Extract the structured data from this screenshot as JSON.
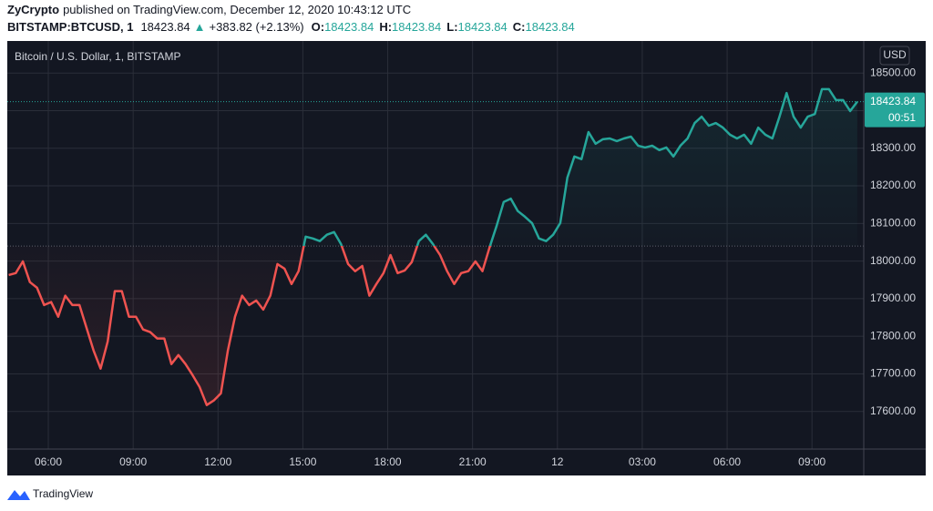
{
  "header": {
    "author": "ZyCrypto",
    "published": "published on TradingView.com, December 12, 2020 10:43:12 UTC",
    "symbol": "BITSTAMP:BTCUSD, 1",
    "last": "18423.84",
    "arrow": "▲",
    "change": "+383.82 (+2.13%)",
    "ohlc": [
      {
        "label": "O:",
        "value": "18423.84"
      },
      {
        "label": "H:",
        "value": "18423.84"
      },
      {
        "label": "L:",
        "value": "18423.84"
      },
      {
        "label": "C:",
        "value": "18423.84"
      }
    ]
  },
  "chart_data": {
    "type": "baseline",
    "title": "Bitcoin / U.S. Dollar, 1, BITSTAMP",
    "unit": "USD",
    "countdown": "00:51",
    "baseline": 18040,
    "up_color": "#26a69a",
    "down_color": "#ef5350",
    "grid": true,
    "xlim": [
      4.55,
      34.83
    ],
    "ylim": [
      17500,
      18578
    ],
    "xticks": [
      {
        "value": 6,
        "label": "06:00"
      },
      {
        "value": 9,
        "label": "09:00"
      },
      {
        "value": 12,
        "label": "12:00"
      },
      {
        "value": 15,
        "label": "15:00"
      },
      {
        "value": 18,
        "label": "18:00"
      },
      {
        "value": 21,
        "label": "21:00"
      },
      {
        "value": 24,
        "label": "12"
      },
      {
        "value": 27,
        "label": "03:00"
      },
      {
        "value": 30,
        "label": "06:00"
      },
      {
        "value": 33,
        "label": "09:00"
      }
    ],
    "yticks": [
      {
        "value": 17600,
        "label": "17600.00"
      },
      {
        "value": 17700,
        "label": "17700.00"
      },
      {
        "value": 17800,
        "label": "17800.00"
      },
      {
        "value": 17900,
        "label": "17900.00"
      },
      {
        "value": 18000,
        "label": "18000.00"
      },
      {
        "value": 18100,
        "label": "18100.00"
      },
      {
        "value": 18200,
        "label": "18200.00"
      },
      {
        "value": 18300,
        "label": "18300.00"
      },
      {
        "value": 18400,
        "label": "18400.00"
      },
      {
        "value": 18500,
        "label": "18500.00"
      }
    ],
    "x": [
      4.6,
      4.85,
      5.1,
      5.35,
      5.6,
      5.85,
      6.1,
      6.35,
      6.6,
      6.85,
      7.1,
      7.35,
      7.6,
      7.85,
      8.1,
      8.35,
      8.6,
      8.85,
      9.1,
      9.35,
      9.6,
      9.85,
      10.1,
      10.35,
      10.6,
      10.85,
      11.1,
      11.35,
      11.6,
      11.85,
      12.1,
      12.35,
      12.6,
      12.85,
      13.1,
      13.35,
      13.6,
      13.85,
      14.1,
      14.35,
      14.6,
      14.85,
      15.1,
      15.35,
      15.6,
      15.85,
      16.1,
      16.35,
      16.6,
      16.85,
      17.1,
      17.35,
      17.6,
      17.85,
      18.1,
      18.35,
      18.6,
      18.85,
      19.1,
      19.35,
      19.6,
      19.85,
      20.1,
      20.35,
      20.6,
      20.85,
      21.1,
      21.35,
      21.6,
      21.85,
      22.1,
      22.35,
      22.6,
      22.85,
      23.1,
      23.35,
      23.6,
      23.85,
      24.1,
      24.35,
      24.6,
      24.85,
      25.1,
      25.35,
      25.6,
      25.85,
      26.1,
      26.35,
      26.6,
      26.85,
      27.1,
      27.35,
      27.6,
      27.85,
      28.1,
      28.35,
      28.6,
      28.85,
      29.1,
      29.35,
      29.6,
      29.85,
      30.1,
      30.35,
      30.6,
      30.85,
      31.1,
      31.35,
      31.6,
      31.85,
      32.1,
      32.35,
      32.6,
      32.85,
      33.1,
      33.35,
      33.6,
      33.85,
      34.1,
      34.35,
      34.6
    ],
    "series": [
      {
        "name": "BTCUSD",
        "values": [
          17963,
          17968,
          17999,
          17944,
          17929,
          17883,
          17891,
          17852,
          17908,
          17883,
          17883,
          17823,
          17762,
          17714,
          17786,
          17920,
          17920,
          17852,
          17852,
          17818,
          17811,
          17794,
          17794,
          17726,
          17750,
          17726,
          17697,
          17665,
          17617,
          17629,
          17648,
          17762,
          17852,
          17908,
          17883,
          17895,
          17871,
          17908,
          17992,
          17980,
          17939,
          17973,
          18065,
          18060,
          18053,
          18070,
          18077,
          18045,
          17992,
          17973,
          17987,
          17908,
          17939,
          17968,
          18016,
          17968,
          17975,
          17997,
          18053,
          18070,
          18045,
          18016,
          17973,
          17939,
          17968,
          17973,
          17999,
          17973,
          18036,
          18094,
          18157,
          18166,
          18133,
          18118,
          18101,
          18060,
          18053,
          18070,
          18101,
          18222,
          18278,
          18271,
          18343,
          18312,
          18324,
          18326,
          18319,
          18326,
          18331,
          18307,
          18302,
          18307,
          18295,
          18302,
          18278,
          18307,
          18326,
          18367,
          18384,
          18360,
          18367,
          18355,
          18336,
          18326,
          18336,
          18312,
          18355,
          18336,
          18326,
          18384,
          18447,
          18384,
          18355,
          18384,
          18391,
          18457,
          18457,
          18428,
          18428,
          18399,
          18423.84
        ]
      }
    ]
  },
  "footer": {
    "brand": "TradingView"
  }
}
